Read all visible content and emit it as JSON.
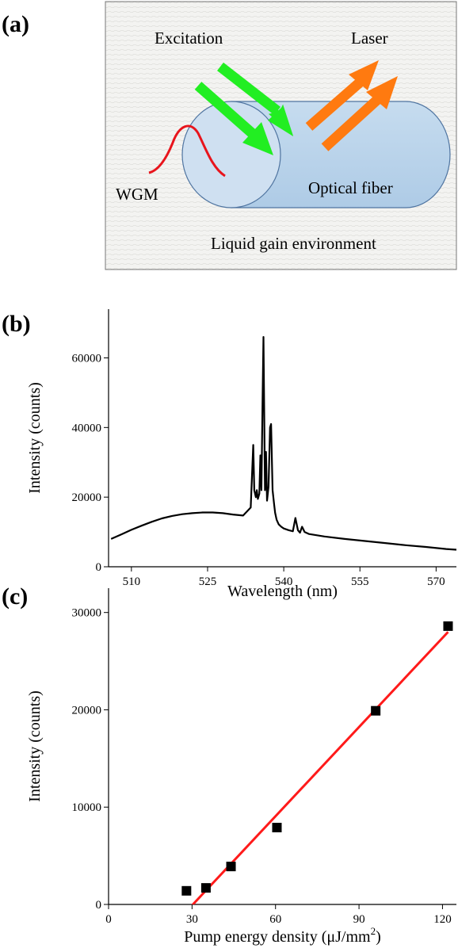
{
  "figure": {
    "panel_a": {
      "label": "(a)",
      "excitation_label": "Excitation",
      "laser_label": "Laser",
      "wgm_label": "WGM",
      "fiber_label": "Optical fiber",
      "environment_label": "Liquid gain environment",
      "colors": {
        "fiber_fill": "#b8d3ea",
        "fiber_stroke": "#5a7fa3",
        "excitation_arrow": "#22ee22",
        "laser_arrow": "#ff7a10",
        "wgm_curve": "#e8141c",
        "background": "#f0f0ee"
      }
    },
    "panel_b": {
      "label": "(b)"
    },
    "panel_c": {
      "label": "(c)"
    }
  },
  "chart_data": [
    {
      "type": "line",
      "xlabel": "Wavelength (nm)",
      "ylabel": "Intensity (counts)",
      "xlim": [
        505.5,
        574
      ],
      "ylim": [
        0,
        74000
      ],
      "xticks": [
        510,
        525,
        540,
        555,
        570
      ],
      "yticks": [
        0,
        20000,
        40000,
        60000
      ],
      "tick_labels_x": [
        "510",
        "525",
        "540",
        "555",
        "570"
      ],
      "tick_labels_y": [
        "0",
        "20000",
        "40000",
        "60000"
      ],
      "grid": false,
      "color": "#000000",
      "series": [
        {
          "x": [
            506,
            508,
            510,
            512,
            514,
            516,
            518,
            520,
            522,
            524,
            526,
            528,
            530,
            532,
            533.5,
            534.0,
            534.2,
            534.5,
            534.7,
            534.9,
            535.2,
            535.4,
            535.6,
            535.8,
            536.0,
            536.3,
            536.5,
            536.7,
            537.0,
            537.3,
            537.5,
            537.8,
            538.1,
            538.3,
            538.6,
            539.0,
            539.5,
            540,
            541,
            541.8,
            542.3,
            542.8,
            543.2,
            543.6,
            544.1,
            545,
            548,
            552,
            556,
            560,
            564,
            568,
            572,
            574
          ],
          "y": [
            8000,
            9300,
            10600,
            11800,
            12900,
            13900,
            14600,
            15100,
            15400,
            15600,
            15600,
            15400,
            15000,
            14700,
            17000,
            35000,
            22000,
            20000,
            22000,
            19500,
            21000,
            32000,
            22000,
            45000,
            66000,
            22000,
            33000,
            19000,
            23000,
            40000,
            41000,
            22000,
            18000,
            15500,
            13500,
            12200,
            11500,
            11000,
            10500,
            10200,
            14000,
            10500,
            9800,
            11500,
            10000,
            9400,
            8700,
            8000,
            7400,
            6800,
            6200,
            5700,
            5100,
            4900
          ]
        }
      ]
    },
    {
      "type": "scatter",
      "xlabel": "Pump energy density (μJ/mm",
      "xlabel_sup": "2",
      "xlabel_close": ")",
      "ylabel": "Intensity (counts)",
      "xlim": [
        0,
        125
      ],
      "ylim": [
        0,
        32500
      ],
      "xticks": [
        0,
        30,
        60,
        90,
        120
      ],
      "yticks": [
        0,
        10000,
        20000,
        30000
      ],
      "tick_labels_x": [
        "0",
        "30",
        "60",
        "90",
        "120"
      ],
      "tick_labels_y": [
        "0",
        "10000",
        "20000",
        "30000"
      ],
      "grid": false,
      "marker_color": "#000000",
      "fit_color": "#ff1a1a",
      "series": [
        {
          "x": [
            28,
            35,
            44,
            60.5,
            96,
            122
          ],
          "y": [
            1400,
            1700,
            3900,
            7900,
            19900,
            28600
          ]
        }
      ],
      "fit_line": {
        "x": [
          29,
          122
        ],
        "y": [
          -400,
          28000
        ]
      }
    }
  ]
}
